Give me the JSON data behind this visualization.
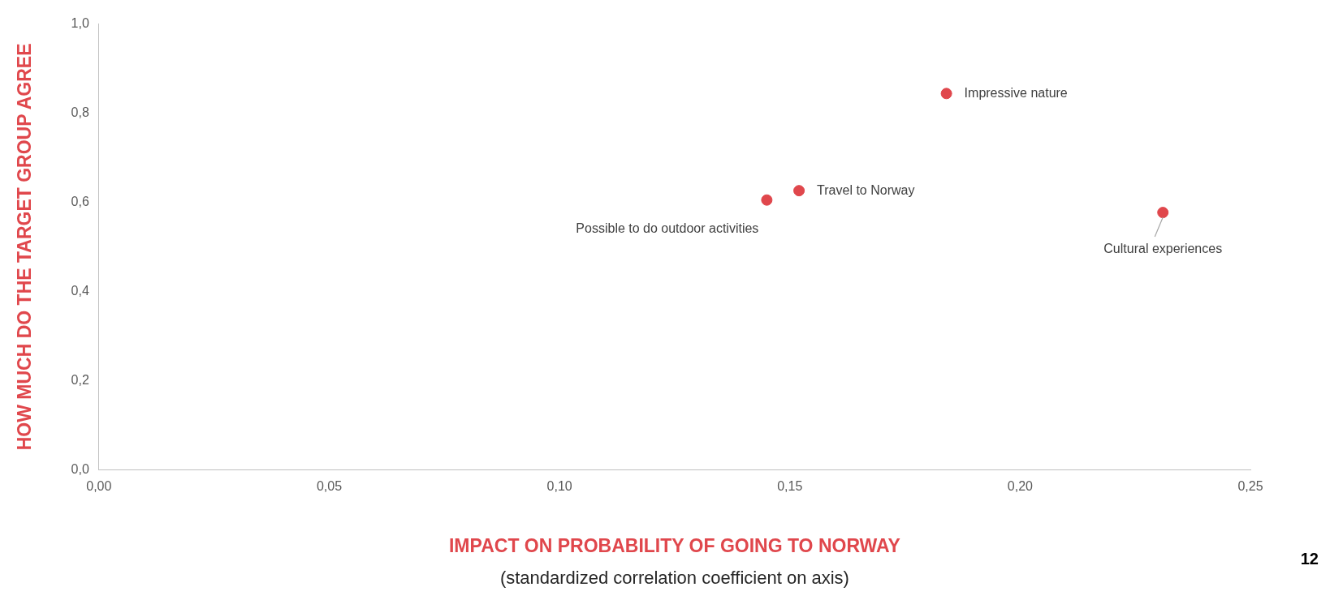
{
  "chart_data": {
    "type": "scatter",
    "xlabel": "IMPACT ON PROBABILITY OF GOING TO NORWAY",
    "ylabel": "HOW MUCH DO THE TARGET GROUP AGREE",
    "series": [
      {
        "color": "#e0474c",
        "x": [
          0.184,
          0.152,
          0.145,
          0.231
        ],
        "values": [
          0.844,
          0.626,
          0.605,
          0.577
        ]
      }
    ],
    "marker": "circle",
    "xlim": [
      0,
      0.25
    ],
    "xticks": [
      {
        "value": 0,
        "label": "0,00"
      },
      {
        "value": 0.05,
        "label": "0,05"
      },
      {
        "value": 0.1,
        "label": "0,10"
      },
      {
        "value": 0.15,
        "label": "0,15"
      },
      {
        "value": 0.2,
        "label": "0,20"
      },
      {
        "value": 0.25,
        "label": "0,25"
      }
    ],
    "ylim": [
      0,
      1
    ],
    "yticks": [
      {
        "value": 0,
        "label": "0,0"
      },
      {
        "value": 0.2,
        "label": "0,2"
      },
      {
        "value": 0.4,
        "label": "0,4"
      },
      {
        "value": 0.6,
        "label": "0,6"
      },
      {
        "value": 0.8,
        "label": "0,8"
      },
      {
        "value": 1,
        "label": "1,0"
      }
    ],
    "grid": false,
    "legend": false,
    "annotations": [
      {
        "text": "Impressive nature",
        "x": 0.184,
        "y": 0.844
      },
      {
        "text": "Travel to Norway",
        "x": 0.152,
        "y": 0.626
      },
      {
        "text": "Possible to do outdoor activities",
        "x": 0.145,
        "y": 0.605
      },
      {
        "text": "Cultural experiences",
        "x": 0.231,
        "y": 0.577
      },
      "(standardized correlation coefficient on axis)",
      "12"
    ]
  }
}
